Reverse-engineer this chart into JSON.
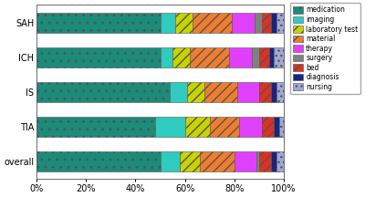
{
  "categories": [
    "SAH",
    "ICH",
    "IS",
    "TIA",
    "overall"
  ],
  "segments": {
    "medication": [
      0.5,
      0.5,
      0.54,
      0.48,
      0.5
    ],
    "imaging": [
      0.06,
      0.05,
      0.07,
      0.12,
      0.08
    ],
    "laboratory_test": [
      0.07,
      0.07,
      0.07,
      0.1,
      0.08
    ],
    "material": [
      0.16,
      0.16,
      0.13,
      0.12,
      0.14
    ],
    "therapy": [
      0.09,
      0.09,
      0.09,
      0.09,
      0.09
    ],
    "surgery": [
      0.03,
      0.03,
      0.0,
      0.0,
      0.01
    ],
    "bed": [
      0.04,
      0.04,
      0.05,
      0.05,
      0.05
    ],
    "diagnosis": [
      0.02,
      0.02,
      0.02,
      0.02,
      0.02
    ],
    "nursing": [
      0.03,
      0.04,
      0.03,
      0.02,
      0.03
    ]
  },
  "colors": {
    "medication": "#1a8c7a",
    "imaging": "#2ecbbe",
    "laboratory_test": "#c8d400",
    "material": "#f07d2e",
    "therapy": "#e040fb",
    "surgery": "#808080",
    "bed": "#e03020",
    "diagnosis": "#1a237e",
    "nursing": "#a0a8d8"
  },
  "hatches": {
    "medication": "..",
    "imaging": "",
    "laboratory_test": "///",
    "material": "///",
    "therapy": "",
    "surgery": "",
    "bed": "///",
    "diagnosis": "",
    "nursing": "..."
  },
  "legend_labels": [
    "medication",
    "imaging",
    "laboratory test",
    "material",
    "therapy",
    "surgery",
    "bed",
    "diagnosis",
    "nursing"
  ],
  "segment_keys": [
    "medication",
    "imaging",
    "laboratory_test",
    "material",
    "therapy",
    "surgery",
    "bed",
    "diagnosis",
    "nursing"
  ],
  "xticks": [
    0,
    0.2,
    0.4,
    0.6,
    0.8,
    1.0
  ],
  "xticklabels": [
    "0%",
    "20%",
    "40%",
    "60%",
    "80%",
    "100%"
  ]
}
